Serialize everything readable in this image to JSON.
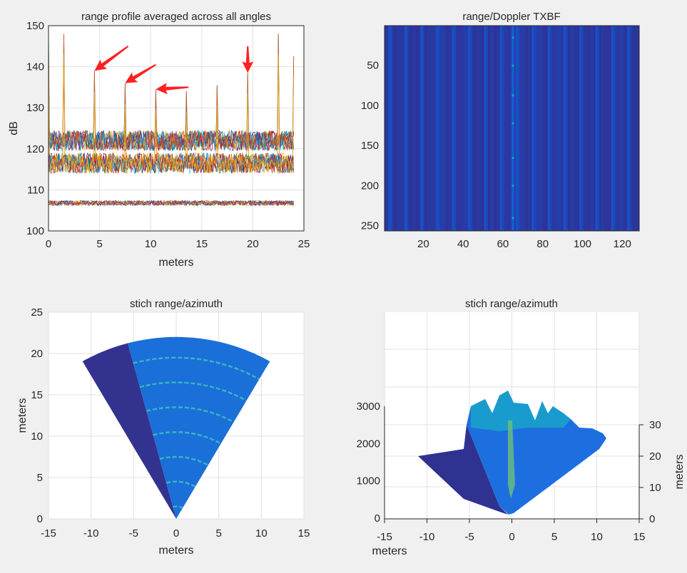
{
  "chart_data": [
    {
      "type": "line",
      "title": "range profile averaged across all angles",
      "xlabel": "meters",
      "ylabel": "dB",
      "xlim": [
        0,
        25
      ],
      "ylim": [
        100,
        150
      ],
      "xticks": [
        "0",
        "5",
        "10",
        "15",
        "20",
        "25"
      ],
      "yticks": [
        "100",
        "110",
        "120",
        "130",
        "140",
        "150"
      ],
      "grid": true,
      "x_extent": [
        0,
        24
      ],
      "noise_band_levels_dB": [
        122,
        116.5,
        106.8
      ],
      "peaks": [
        {
          "x": 0,
          "y": 148
        },
        {
          "x": 1.5,
          "y": 148
        },
        {
          "x": 4.5,
          "y": 139
        },
        {
          "x": 7.5,
          "y": 136
        },
        {
          "x": 10.5,
          "y": 134.5
        },
        {
          "x": 13.5,
          "y": 134
        },
        {
          "x": 16.5,
          "y": 135.5
        },
        {
          "x": 19.5,
          "y": 138.5
        },
        {
          "x": 22.5,
          "y": 148
        },
        {
          "x": 24,
          "y": 142.5
        }
      ],
      "annotations": [
        {
          "type": "arrow",
          "color": "#ff2020",
          "points_to": {
            "x": 4.5,
            "y": 139
          }
        },
        {
          "type": "arrow",
          "color": "#ff2020",
          "points_to": {
            "x": 7.5,
            "y": 136
          }
        },
        {
          "type": "arrow",
          "color": "#ff2020",
          "points_to": {
            "x": 10.5,
            "y": 134.5
          }
        },
        {
          "type": "arrow",
          "color": "#ff2020",
          "points_to": {
            "x": 19.5,
            "y": 138.5
          }
        }
      ],
      "series_colors": [
        "#0072bd",
        "#d95319",
        "#edb120",
        "#7e2f8e",
        "#77ac30",
        "#4dbeee",
        "#a2142f"
      ]
    },
    {
      "type": "heatmap",
      "title": "range/Doppler TXBF",
      "xlim": [
        0.5,
        128.5
      ],
      "ylim": [
        0.5,
        256.5
      ],
      "y_reversed": true,
      "xticks": [
        "20",
        "40",
        "60",
        "80",
        "100",
        "120"
      ],
      "yticks": [
        "50",
        "100",
        "150",
        "200",
        "250"
      ],
      "bright_column": 65,
      "bright_rows": [
        15,
        50,
        87,
        122,
        165,
        200,
        240
      ],
      "colormap": "parula"
    },
    {
      "type": "heatmap",
      "title": "stich range/azimuth",
      "xlabel": "meters",
      "ylabel": "meters",
      "xlim": [
        -15,
        15
      ],
      "ylim": [
        0,
        25
      ],
      "xticks": [
        "-15",
        "-10",
        "-5",
        "0",
        "5",
        "10",
        "15"
      ],
      "yticks": [
        "0",
        "5",
        "10",
        "15",
        "20",
        "25"
      ],
      "grid": true,
      "max_range": 22,
      "bright_arcs_range": [
        1.5,
        4.5,
        7.5,
        10.5,
        13.5,
        16.5,
        19.5
      ],
      "colormap": "parula"
    },
    {
      "type": "surface",
      "title": "stich range/azimuth",
      "xlabel": "meters",
      "ylabel": "meters",
      "xlim": [
        -15,
        15
      ],
      "xticks": [
        "-15",
        "-10",
        "-5",
        "0",
        "5",
        "10",
        "15"
      ],
      "zticks": [
        "0",
        "1000",
        "2000",
        "3000"
      ],
      "yticks": [
        "0",
        "10",
        "20",
        "30"
      ],
      "grid": true,
      "colormap": "parula"
    }
  ]
}
